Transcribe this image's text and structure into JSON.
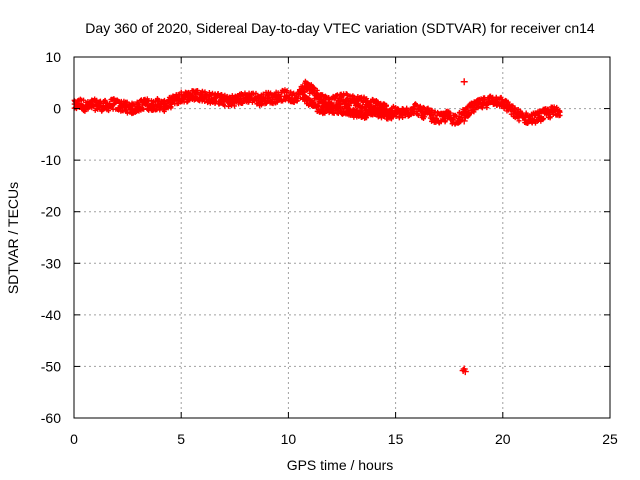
{
  "chart_data": {
    "type": "scatter",
    "title": "Day 360 of 2020, Sidereal Day-to-day VTEC variation (SDTVAR) for receiver cn14",
    "xlabel": "GPS time / hours",
    "ylabel": "SDTVAR / TECUs",
    "xlim": [
      0,
      25
    ],
    "ylim": [
      -60,
      10
    ],
    "xticks": [
      0,
      5,
      10,
      15,
      20,
      25
    ],
    "yticks": [
      10,
      0,
      -10,
      -20,
      -30,
      -40,
      -50,
      -60
    ],
    "grid": true,
    "marker": "+",
    "color": "#ff0000",
    "series": [
      {
        "name": "SDTVAR",
        "trace": [
          [
            0.0,
            0.5
          ],
          [
            0.3,
            1.0
          ],
          [
            0.6,
            0.3
          ],
          [
            0.9,
            0.8
          ],
          [
            1.2,
            0.6
          ],
          [
            1.5,
            0.5
          ],
          [
            1.8,
            0.9
          ],
          [
            2.1,
            0.6
          ],
          [
            2.4,
            0.3
          ],
          [
            2.7,
            0.0
          ],
          [
            3.0,
            0.4
          ],
          [
            3.3,
            1.0
          ],
          [
            3.6,
            0.6
          ],
          [
            3.9,
            0.9
          ],
          [
            4.2,
            0.5
          ],
          [
            4.5,
            1.2
          ],
          [
            4.8,
            1.9
          ],
          [
            5.1,
            2.3
          ],
          [
            5.4,
            2.4
          ],
          [
            5.7,
            2.7
          ],
          [
            6.0,
            2.5
          ],
          [
            6.3,
            2.1
          ],
          [
            6.6,
            2.0
          ],
          [
            6.9,
            1.7
          ],
          [
            7.2,
            1.4
          ],
          [
            7.5,
            1.6
          ],
          [
            7.8,
            1.9
          ],
          [
            8.1,
            2.2
          ],
          [
            8.4,
            2.1
          ],
          [
            8.7,
            1.6
          ],
          [
            9.0,
            2.2
          ],
          [
            9.3,
            2.0
          ],
          [
            9.6,
            2.4
          ],
          [
            9.9,
            2.6
          ],
          [
            10.2,
            2.0
          ],
          [
            10.5,
            2.8
          ],
          [
            10.8,
            4.5
          ],
          [
            11.1,
            3.6
          ],
          [
            11.4,
            2.4
          ],
          [
            11.7,
            1.6
          ],
          [
            12.0,
            1.2
          ],
          [
            12.3,
            1.6
          ],
          [
            12.6,
            2.0
          ],
          [
            12.9,
            1.6
          ],
          [
            13.2,
            1.4
          ],
          [
            13.5,
            1.2
          ],
          [
            13.8,
            0.9
          ],
          [
            14.1,
            0.6
          ],
          [
            14.4,
            0.2
          ],
          [
            14.7,
            -0.4
          ],
          [
            15.0,
            -0.8
          ],
          [
            15.3,
            -1.0
          ],
          [
            15.6,
            -0.6
          ],
          [
            15.9,
            0.2
          ],
          [
            16.2,
            -0.8
          ],
          [
            16.5,
            -1.0
          ],
          [
            16.8,
            -1.6
          ],
          [
            17.1,
            -2.0
          ],
          [
            17.4,
            -1.4
          ],
          [
            17.7,
            -2.0
          ],
          [
            18.0,
            -1.8
          ],
          [
            18.3,
            -0.6
          ],
          [
            18.6,
            0.2
          ],
          [
            18.9,
            0.7
          ],
          [
            19.2,
            1.2
          ],
          [
            19.5,
            1.7
          ],
          [
            19.8,
            1.5
          ],
          [
            20.1,
            0.8
          ],
          [
            20.4,
            -0.4
          ],
          [
            20.7,
            -1.2
          ],
          [
            21.0,
            -1.8
          ],
          [
            21.3,
            -2.0
          ],
          [
            21.6,
            -1.6
          ],
          [
            21.9,
            -1.2
          ],
          [
            22.2,
            -0.8
          ],
          [
            22.5,
            -0.4
          ],
          [
            22.7,
            -0.2
          ]
        ],
        "trace_lower": [
          [
            10.7,
            2.5
          ],
          [
            11.0,
            1.0
          ],
          [
            11.3,
            0.2
          ],
          [
            11.6,
            -0.2
          ],
          [
            11.9,
            0.0
          ],
          [
            12.2,
            -0.4
          ],
          [
            12.5,
            -0.3
          ],
          [
            12.8,
            -0.6
          ],
          [
            13.1,
            -1.0
          ],
          [
            13.4,
            -1.2
          ],
          [
            13.7,
            -1.0
          ],
          [
            14.0,
            -0.6
          ],
          [
            14.3,
            -1.0
          ],
          [
            14.6,
            -1.4
          ],
          [
            14.9,
            -1.2
          ]
        ],
        "outliers": [
          [
            18.2,
            5.2
          ],
          [
            18.2,
            -50.5
          ],
          [
            18.25,
            -51.0
          ],
          [
            18.15,
            -50.8
          ],
          [
            18.2,
            -2.4
          ],
          [
            17.9,
            -2.6
          ]
        ]
      }
    ]
  }
}
